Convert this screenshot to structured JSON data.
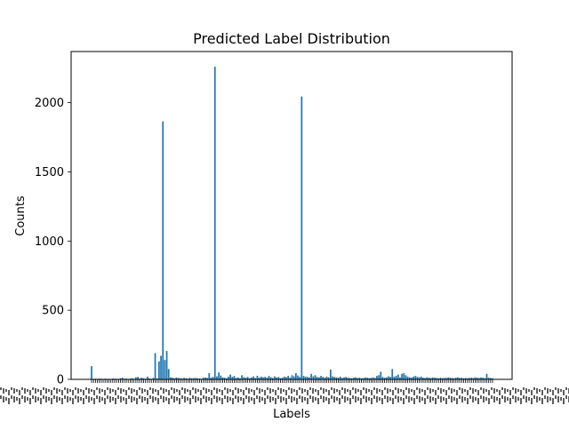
{
  "chart_data": {
    "type": "bar",
    "title": "Predicted Label Distribution",
    "xlabel": "Labels",
    "ylabel": "Counts",
    "ylim": [
      0,
      2370
    ],
    "yticks": [
      0,
      500,
      1000,
      1500,
      2000
    ],
    "grid": false,
    "legend": "none",
    "colors": {
      "bar": "#1f77b4",
      "axis": "#000000",
      "background": "#ffffff"
    },
    "tick_label_note": "x-axis category tick labels are dense and overlapping; individual label texts are not legible",
    "values": [
      95,
      2,
      5,
      3,
      6,
      4,
      3,
      5,
      2,
      4,
      3,
      6,
      5,
      4,
      3,
      8,
      12,
      4,
      6,
      3,
      5,
      9,
      4,
      15,
      18,
      6,
      12,
      8,
      5,
      20,
      7,
      4,
      10,
      190,
      6,
      130,
      170,
      1865,
      140,
      205,
      75,
      15,
      12,
      8,
      14,
      10,
      9,
      6,
      11,
      8,
      5,
      12,
      7,
      9,
      10,
      8,
      6,
      4,
      12,
      14,
      10,
      45,
      12,
      18,
      2260,
      22,
      50,
      28,
      15,
      12,
      8,
      20,
      35,
      18,
      25,
      10,
      14,
      8,
      30,
      16,
      12,
      18,
      9,
      14,
      22,
      10,
      26,
      12,
      20,
      15,
      18,
      12,
      25,
      16,
      10,
      22,
      14,
      18,
      9,
      12,
      20,
      16,
      25,
      12,
      30,
      22,
      45,
      28,
      18,
      2045,
      25,
      20,
      18,
      15,
      40,
      22,
      30,
      18,
      15,
      25,
      18,
      12,
      20,
      15,
      70,
      22,
      18,
      15,
      12,
      20,
      10,
      14,
      18,
      12,
      10,
      8,
      12,
      15,
      10,
      12,
      8,
      10,
      14,
      12,
      9,
      11,
      15,
      10,
      25,
      30,
      55,
      18,
      12,
      15,
      22,
      18,
      75,
      20,
      25,
      35,
      15,
      40,
      45,
      30,
      20,
      15,
      12,
      20,
      25,
      18,
      15,
      20,
      12,
      10,
      15,
      12,
      10,
      14,
      12,
      10,
      8,
      12,
      9,
      11,
      10,
      14,
      12,
      10,
      8,
      12,
      15,
      10,
      12,
      8,
      10,
      9,
      11,
      12,
      10,
      15,
      12,
      10,
      14,
      12,
      9,
      40,
      12,
      10,
      8
    ]
  }
}
